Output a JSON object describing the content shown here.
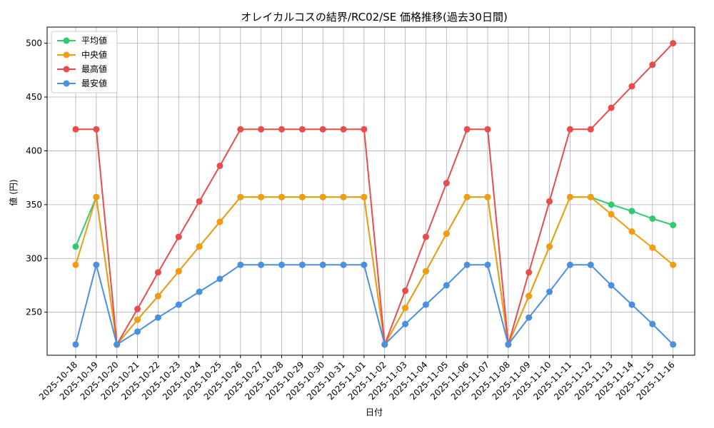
{
  "chart_data": {
    "type": "line",
    "title": "オレイカルコスの結界/RC02/SE 価格推移(過去30日間)",
    "xlabel": "日付",
    "ylabel": "値 (円)",
    "ylim": [
      210,
      515
    ],
    "y_ticks": [
      250,
      300,
      350,
      400,
      450,
      500
    ],
    "grid": true,
    "legend_position": "top-left",
    "categories": [
      "2025-10-18",
      "2025-10-19",
      "2025-10-20",
      "2025-10-21",
      "2025-10-22",
      "2025-10-23",
      "2025-10-24",
      "2025-10-25",
      "2025-10-26",
      "2025-10-27",
      "2025-10-28",
      "2025-10-29",
      "2025-10-30",
      "2025-10-31",
      "2025-11-01",
      "2025-11-02",
      "2025-11-03",
      "2025-11-04",
      "2025-11-05",
      "2025-11-06",
      "2025-11-07",
      "2025-11-08",
      "2025-11-09",
      "2025-11-10",
      "2025-11-11",
      "2025-11-12",
      "2025-11-13",
      "2025-11-14",
      "2025-11-15",
      "2025-11-16"
    ],
    "series": [
      {
        "name": "平均値",
        "color": "#2ecc71",
        "values": [
          311,
          357,
          220,
          243,
          265,
          288,
          311,
          334,
          357,
          357,
          357,
          357,
          357,
          357,
          357,
          220,
          254,
          288,
          323,
          357,
          357,
          220,
          265,
          311,
          357,
          357,
          350,
          344,
          337,
          331
        ]
      },
      {
        "name": "中央値",
        "color": "#f39c12",
        "values": [
          294,
          357,
          220,
          243,
          265,
          288,
          311,
          334,
          357,
          357,
          357,
          357,
          357,
          357,
          357,
          220,
          254,
          288,
          323,
          357,
          357,
          220,
          265,
          311,
          357,
          357,
          341,
          325,
          310,
          294
        ]
      },
      {
        "name": "最高値",
        "color": "#e84c4c",
        "values": [
          420,
          420,
          220,
          253,
          287,
          320,
          353,
          386,
          420,
          420,
          420,
          420,
          420,
          420,
          420,
          220,
          270,
          320,
          370,
          420,
          420,
          220,
          287,
          353,
          420,
          420,
          440,
          460,
          480,
          500
        ]
      },
      {
        "name": "最安値",
        "color": "#4a90e2",
        "values": [
          220,
          294,
          220,
          232,
          245,
          257,
          269,
          281,
          294,
          294,
          294,
          294,
          294,
          294,
          294,
          220,
          239,
          257,
          275,
          294,
          294,
          220,
          245,
          269,
          294,
          294,
          275,
          257,
          239,
          220
        ]
      }
    ]
  }
}
